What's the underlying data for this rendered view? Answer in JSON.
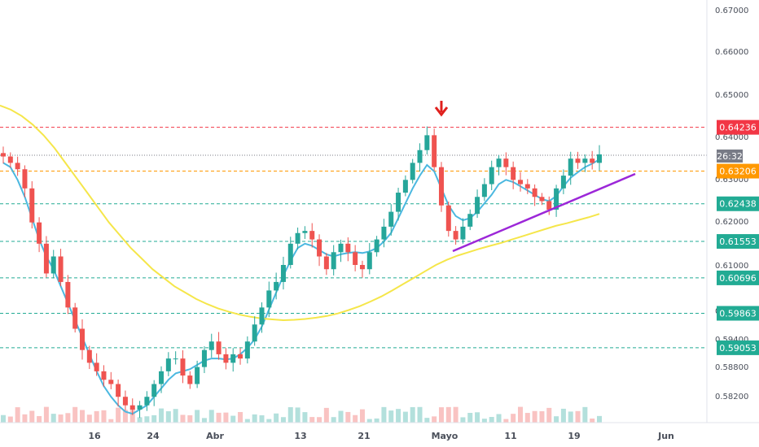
{
  "chart_data": {
    "type": "candlestick",
    "y_axis": {
      "position": "right",
      "ticks": [
        "0.67000",
        "0.66000",
        "0.65000",
        "0.64000",
        "0.63000",
        "0.62000",
        "0.61000",
        "0.60000",
        "0.59400",
        "0.58800",
        "0.58200"
      ],
      "range": [
        0.577,
        0.671
      ]
    },
    "x_axis": {
      "ticks": [
        "16",
        "24",
        "Abr",
        "13",
        "21",
        "Mayo",
        "11",
        "19",
        "Jun"
      ]
    },
    "price_levels": [
      {
        "value": 0.64236,
        "label": "0.64236",
        "color": "#f23645",
        "style": "dashed"
      },
      {
        "value": 0.63206,
        "label": "0.63206",
        "color": "#ff9800",
        "style": "dashed"
      },
      {
        "value": 0.62438,
        "label": "0.62438",
        "color": "#22ab94",
        "style": "dashed"
      },
      {
        "value": 0.61553,
        "label": "0.61553",
        "color": "#22ab94",
        "style": "dashed"
      },
      {
        "value": 0.60696,
        "label": "0.60696",
        "color": "#22ab94",
        "style": "dashed"
      },
      {
        "value": 0.59863,
        "label": "0.59863",
        "color": "#22ab94",
        "style": "dashed"
      },
      {
        "value": 0.59053,
        "label": "0.59053",
        "color": "#22ab94",
        "style": "dashed"
      }
    ],
    "current_price_line": {
      "value": 0.6358,
      "countdown": "26:32",
      "color": "#787b86"
    },
    "series": [
      {
        "name": "",
        "kind": "close",
        "values": [
          0.6355,
          0.634,
          0.6325,
          0.628,
          0.62,
          0.615,
          0.608,
          0.612,
          0.606,
          0.6,
          0.595,
          0.59,
          0.587,
          0.585,
          0.583,
          0.582,
          0.579,
          0.577,
          0.576,
          0.577,
          0.579,
          0.582,
          0.585,
          0.588,
          0.588,
          0.584,
          0.582,
          0.586,
          0.59,
          0.592,
          0.589,
          0.587,
          0.589,
          0.588,
          0.592,
          0.596,
          0.6,
          0.604,
          0.606,
          0.61,
          0.615,
          0.6175,
          0.618,
          0.616,
          0.612,
          0.609,
          0.613,
          0.615,
          0.613,
          0.61,
          0.609,
          0.613,
          0.616,
          0.619,
          0.6225,
          0.627,
          0.63,
          0.634,
          0.637,
          0.6405,
          0.633,
          0.624,
          0.618,
          0.616,
          0.619,
          0.622,
          0.626,
          0.629,
          0.633,
          0.635,
          0.633,
          0.63,
          0.629,
          0.628,
          0.626,
          0.625,
          0.623,
          0.628,
          0.631,
          0.635,
          0.634,
          0.635,
          0.634,
          0.636
        ]
      },
      {
        "name": "",
        "kind": "sma_fast",
        "color": "#4bb8e0",
        "values": [
          0.634,
          0.633,
          0.63,
          0.626,
          0.621,
          0.616,
          0.612,
          0.609,
          0.605,
          0.601,
          0.597,
          0.593,
          0.589,
          0.585,
          0.5815,
          0.579,
          0.577,
          0.5755,
          0.575,
          0.576,
          0.577,
          0.579,
          0.581,
          0.583,
          0.5845,
          0.585,
          0.5855,
          0.5865,
          0.5875,
          0.588,
          0.588,
          0.5878,
          0.588,
          0.589,
          0.5905,
          0.5925,
          0.5955,
          0.5995,
          0.6035,
          0.6075,
          0.611,
          0.614,
          0.615,
          0.6145,
          0.6135,
          0.6125,
          0.612,
          0.6125,
          0.6128,
          0.613,
          0.6128,
          0.6132,
          0.614,
          0.6155,
          0.6175,
          0.621,
          0.6245,
          0.628,
          0.631,
          0.6335,
          0.632,
          0.628,
          0.624,
          0.6215,
          0.6205,
          0.621,
          0.6225,
          0.6245,
          0.6265,
          0.629,
          0.63,
          0.6295,
          0.6285,
          0.6275,
          0.6265,
          0.6255,
          0.625,
          0.6262,
          0.6285,
          0.6305,
          0.6318,
          0.633,
          0.6338,
          0.6348
        ]
      },
      {
        "name": "",
        "kind": "sma_slow",
        "color": "#f5e64a",
        "values": [
          0.6475,
          0.6465,
          0.645,
          0.643,
          0.6405,
          0.6375,
          0.634,
          0.6305,
          0.627,
          0.6235,
          0.62,
          0.617,
          0.614,
          0.6115,
          0.609,
          0.607,
          0.605,
          0.6035,
          0.602,
          0.6008,
          0.5998,
          0.599,
          0.5983,
          0.5978,
          0.5974,
          0.5972,
          0.597,
          0.5971,
          0.5973,
          0.5976,
          0.598,
          0.5986,
          0.5994,
          0.6003,
          0.6014,
          0.6026,
          0.604,
          0.6055,
          0.607,
          0.6085,
          0.61,
          0.6112,
          0.6122,
          0.613,
          0.6138,
          0.6145,
          0.6152,
          0.616,
          0.6168,
          0.6176,
          0.6184,
          0.6192,
          0.6198,
          0.6205,
          0.6212,
          0.622
        ]
      }
    ],
    "annotations": [
      {
        "type": "arrow_down",
        "color": "#e0201d",
        "x_index": 61
      },
      {
        "type": "trendline",
        "color": "#9c27d8"
      }
    ],
    "grid": false,
    "volume": true,
    "colors": {
      "up": "#26a69a",
      "down": "#ef5350"
    }
  }
}
